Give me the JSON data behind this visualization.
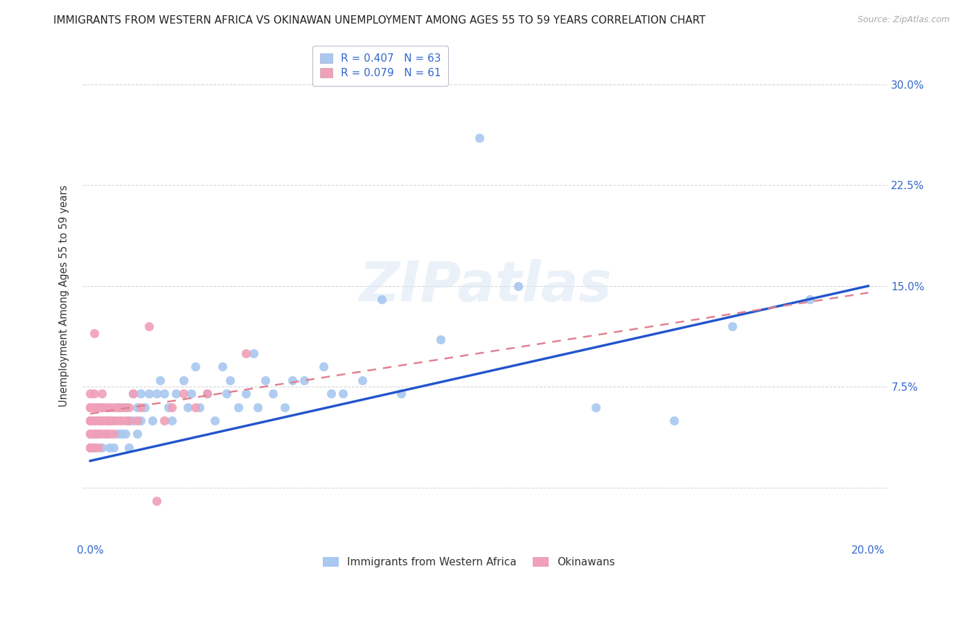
{
  "title": "IMMIGRANTS FROM WESTERN AFRICA VS OKINAWAN UNEMPLOYMENT AMONG AGES 55 TO 59 YEARS CORRELATION CHART",
  "source": "Source: ZipAtlas.com",
  "ylabel": "Unemployment Among Ages 55 to 59 years",
  "legend_label_blue": "Immigrants from Western Africa",
  "legend_label_pink": "Okinawans",
  "R_blue": 0.407,
  "N_blue": 63,
  "R_pink": 0.079,
  "N_pink": 61,
  "xlim": [
    -0.002,
    0.205
  ],
  "ylim": [
    -0.04,
    0.325
  ],
  "yticks": [
    0.0,
    0.075,
    0.15,
    0.225,
    0.3
  ],
  "ytick_labels": [
    "",
    "7.5%",
    "15.0%",
    "22.5%",
    "30.0%"
  ],
  "xticks": [
    0.0,
    0.05,
    0.1,
    0.15,
    0.2
  ],
  "xtick_labels": [
    "0.0%",
    "",
    "",
    "",
    "20.0%"
  ],
  "background_color": "#ffffff",
  "plot_bg_color": "#ffffff",
  "grid_color": "#cccccc",
  "dot_color_blue": "#a8c8f0",
  "dot_color_pink": "#f0a0b8",
  "line_color_blue": "#2255cc",
  "line_color_pink": "#e08090",
  "watermark": "ZIPatlas",
  "title_fontsize": 11,
  "source_fontsize": 9,
  "blue_scatter_x": [
    0.001,
    0.002,
    0.003,
    0.004,
    0.005,
    0.005,
    0.006,
    0.006,
    0.007,
    0.007,
    0.008,
    0.008,
    0.009,
    0.009,
    0.01,
    0.01,
    0.011,
    0.011,
    0.012,
    0.012,
    0.013,
    0.013,
    0.014,
    0.015,
    0.016,
    0.017,
    0.018,
    0.019,
    0.02,
    0.021,
    0.022,
    0.024,
    0.025,
    0.026,
    0.027,
    0.028,
    0.03,
    0.032,
    0.034,
    0.035,
    0.036,
    0.038,
    0.04,
    0.042,
    0.043,
    0.045,
    0.047,
    0.05,
    0.052,
    0.055,
    0.06,
    0.062,
    0.065,
    0.07,
    0.075,
    0.08,
    0.09,
    0.1,
    0.11,
    0.13,
    0.15,
    0.165,
    0.185
  ],
  "blue_scatter_y": [
    0.03,
    0.04,
    0.03,
    0.04,
    0.03,
    0.05,
    0.03,
    0.05,
    0.04,
    0.06,
    0.04,
    0.06,
    0.04,
    0.06,
    0.03,
    0.05,
    0.05,
    0.07,
    0.04,
    0.06,
    0.05,
    0.07,
    0.06,
    0.07,
    0.05,
    0.07,
    0.08,
    0.07,
    0.06,
    0.05,
    0.07,
    0.08,
    0.06,
    0.07,
    0.09,
    0.06,
    0.07,
    0.05,
    0.09,
    0.07,
    0.08,
    0.06,
    0.07,
    0.1,
    0.06,
    0.08,
    0.07,
    0.06,
    0.08,
    0.08,
    0.09,
    0.07,
    0.07,
    0.08,
    0.14,
    0.07,
    0.11,
    0.26,
    0.15,
    0.06,
    0.05,
    0.12,
    0.14
  ],
  "pink_scatter_x": [
    0.0,
    0.0,
    0.0,
    0.0,
    0.0,
    0.0,
    0.0,
    0.0,
    0.0,
    0.001,
    0.001,
    0.001,
    0.001,
    0.001,
    0.001,
    0.001,
    0.001,
    0.001,
    0.002,
    0.002,
    0.002,
    0.002,
    0.002,
    0.002,
    0.002,
    0.003,
    0.003,
    0.003,
    0.003,
    0.003,
    0.003,
    0.004,
    0.004,
    0.004,
    0.004,
    0.005,
    0.005,
    0.005,
    0.005,
    0.006,
    0.006,
    0.006,
    0.007,
    0.007,
    0.008,
    0.008,
    0.009,
    0.009,
    0.01,
    0.01,
    0.011,
    0.012,
    0.013,
    0.015,
    0.017,
    0.019,
    0.021,
    0.024,
    0.027,
    0.03,
    0.04
  ],
  "pink_scatter_y": [
    0.04,
    0.05,
    0.03,
    0.06,
    0.04,
    0.05,
    0.03,
    0.06,
    0.07,
    0.04,
    0.05,
    0.03,
    0.06,
    0.04,
    0.05,
    0.06,
    0.07,
    0.04,
    0.05,
    0.04,
    0.06,
    0.03,
    0.05,
    0.04,
    0.06,
    0.05,
    0.04,
    0.06,
    0.05,
    0.06,
    0.07,
    0.05,
    0.04,
    0.06,
    0.05,
    0.05,
    0.04,
    0.06,
    0.05,
    0.05,
    0.06,
    0.04,
    0.05,
    0.06,
    0.05,
    0.06,
    0.05,
    0.06,
    0.05,
    0.06,
    0.07,
    0.05,
    0.06,
    0.12,
    -0.01,
    0.05,
    0.06,
    0.07,
    0.06,
    0.07,
    0.1
  ],
  "pink_outlier_x": [
    0.001
  ],
  "pink_outlier_y": [
    0.115
  ],
  "blue_line_x": [
    0.0,
    0.2
  ],
  "blue_line_y": [
    0.02,
    0.15
  ],
  "pink_line_x": [
    0.0,
    0.2
  ],
  "pink_line_y": [
    0.055,
    0.145
  ]
}
